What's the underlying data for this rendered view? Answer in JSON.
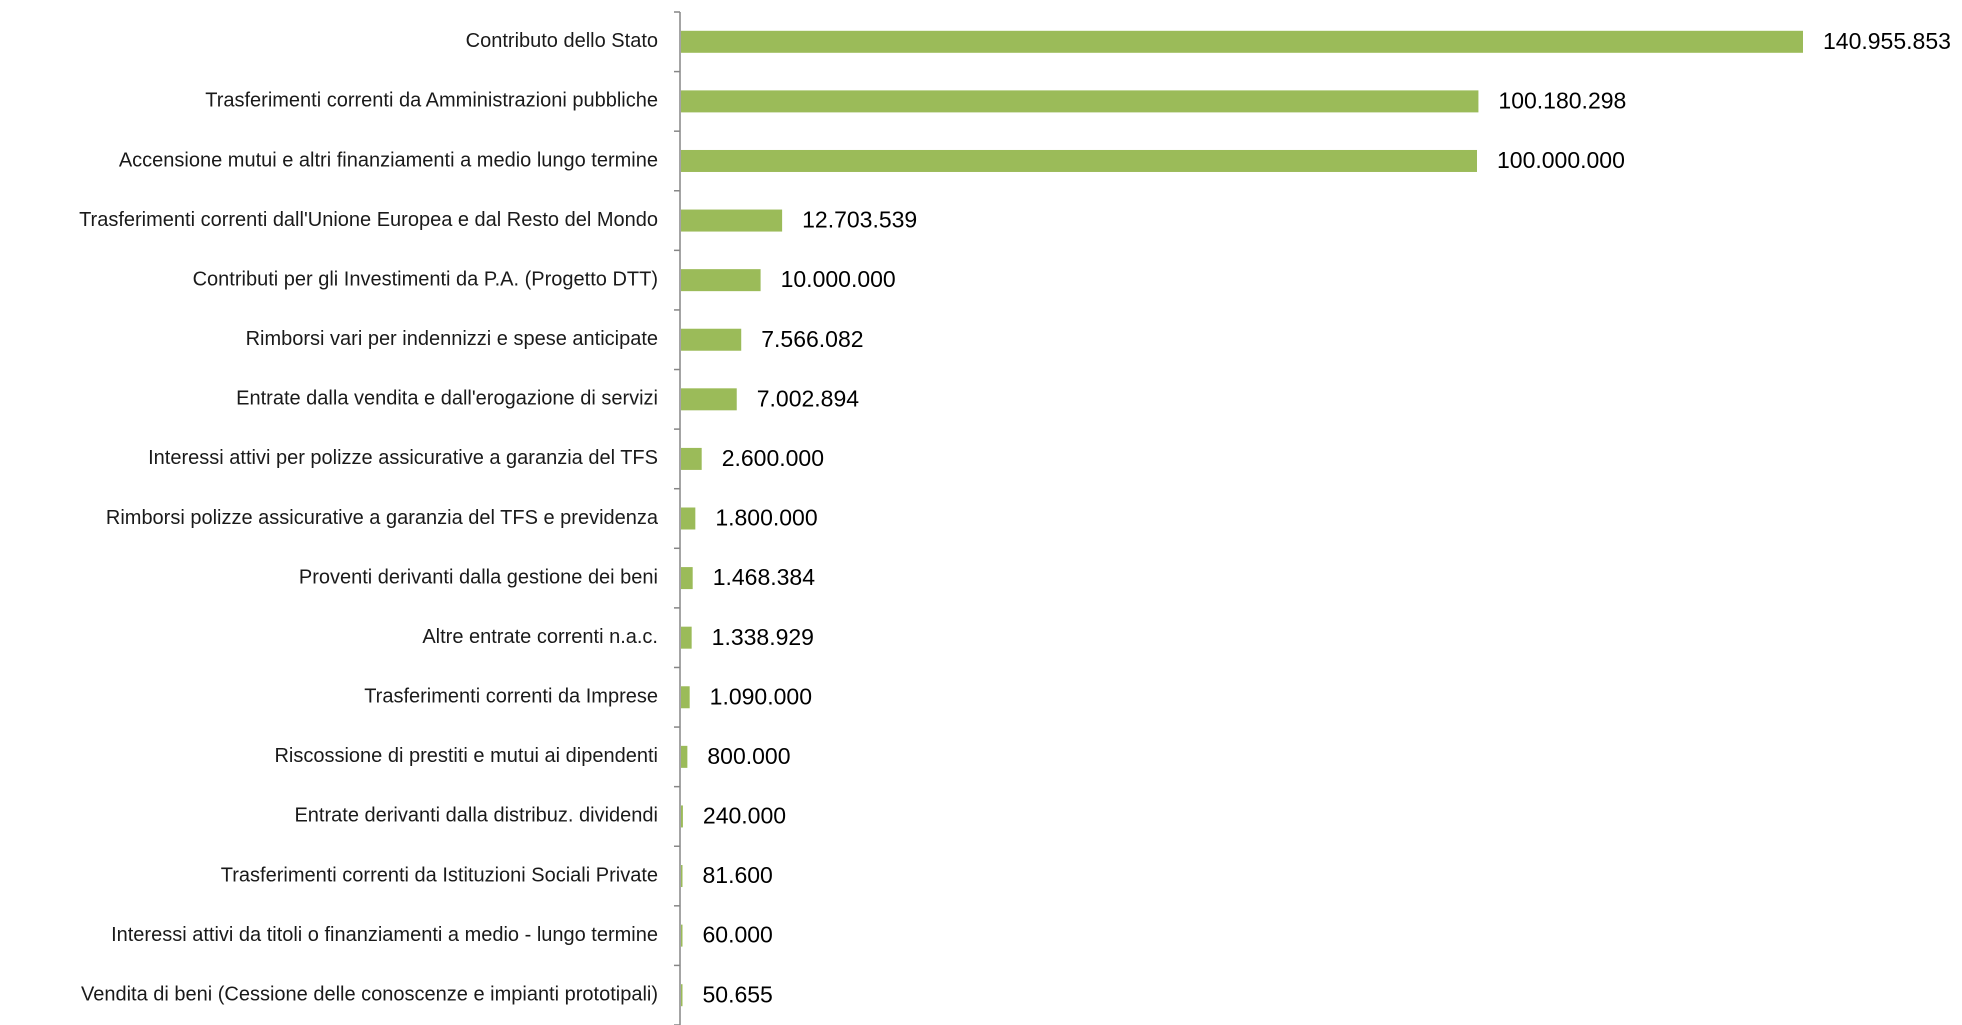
{
  "chart_data": {
    "type": "bar",
    "orientation": "horizontal",
    "title": "",
    "xlabel": "",
    "ylabel": "",
    "grid": false,
    "legend": "none",
    "bar_color": "#9BBB59",
    "axis_color": "#868686",
    "categories": [
      "Contributo dello Stato",
      "Trasferimenti correnti da Amministrazioni pubbliche",
      "Accensione mutui e altri finanziamenti a medio lungo termine",
      "Trasferimenti correnti dall'Unione Europea e dal Resto del Mondo",
      "Contributi per gli Investimenti da P.A. (Progetto DTT)",
      "Rimborsi vari per indennizzi e spese anticipate ",
      "Entrate dalla vendita e dall'erogazione di servizi",
      "Interessi attivi per polizze assicurative a garanzia del TFS",
      "Rimborsi polizze assicurative a garanzia del TFS e previdenza",
      "Proventi derivanti dalla gestione dei beni",
      "Altre entrate correnti n.a.c.",
      "Trasferimenti correnti da Imprese",
      "Riscossione di prestiti e mutui ai dipendenti",
      "Entrate derivanti dalla distribuz. dividendi",
      "Trasferimenti correnti da Istituzioni Sociali Private",
      "Interessi attivi da titoli o finanziamenti a medio - lungo termine",
      "Vendita di beni (Cessione delle conoscenze e impianti prototipali)"
    ],
    "values": [
      140955853,
      100180298,
      100000000,
      12703539,
      10000000,
      7566082,
      7002894,
      2600000,
      1800000,
      1468384,
      1338929,
      1090000,
      800000,
      240000,
      81600,
      60000,
      50655
    ],
    "value_labels": [
      "140.955.853",
      "100.180.298",
      "100.000.000",
      "12.703.539",
      "10.000.000",
      "7.566.082",
      "7.002.894",
      "2.600.000",
      "1.800.000",
      "1.468.384",
      "1.338.929",
      "1.090.000",
      "800.000",
      "240.000",
      "81.600",
      "60.000",
      "50.655"
    ],
    "xlim": [
      0,
      140955853
    ]
  }
}
